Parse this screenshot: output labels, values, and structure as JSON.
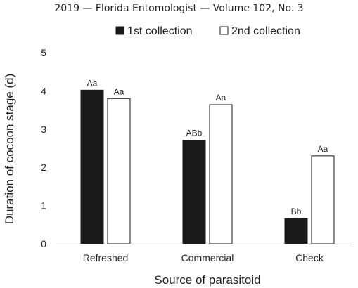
{
  "header": {
    "running_title": "2019 — Florida Entomologist — Volume 102, No. 3"
  },
  "chart_data": {
    "type": "bar",
    "categories": [
      "Refreshed",
      "Commercial",
      "Check"
    ],
    "series": [
      {
        "name": "1st collection",
        "values": [
          4.02,
          2.71,
          0.66
        ],
        "labels": [
          "Aa",
          "ABb",
          "Bb"
        ],
        "fill": "#1a1a1a"
      },
      {
        "name": "2nd collection",
        "values": [
          3.8,
          3.64,
          2.3
        ],
        "labels": [
          "Aa",
          "Aa",
          "Aa"
        ],
        "fill": "#ffffff"
      }
    ],
    "xlabel": "Source of parasitoid",
    "ylabel": "Duration of cocoon stage (d)",
    "ylim": [
      0,
      5
    ],
    "yticks": [
      0,
      1,
      2,
      3,
      4,
      5
    ],
    "grid": false,
    "legend_position": "top"
  }
}
